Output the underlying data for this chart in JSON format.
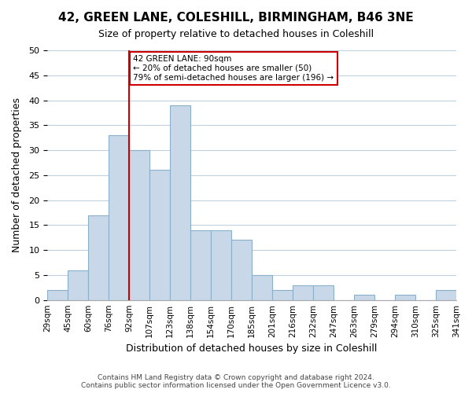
{
  "title": "42, GREEN LANE, COLESHILL, BIRMINGHAM, B46 3NE",
  "subtitle": "Size of property relative to detached houses in Coleshill",
  "xlabel": "Distribution of detached houses by size in Coleshill",
  "ylabel": "Number of detached properties",
  "footer_lines": [
    "Contains HM Land Registry data © Crown copyright and database right 2024.",
    "Contains public sector information licensed under the Open Government Licence v3.0."
  ],
  "bin_labels": [
    "29sqm",
    "45sqm",
    "60sqm",
    "76sqm",
    "92sqm",
    "107sqm",
    "123sqm",
    "138sqm",
    "154sqm",
    "170sqm",
    "185sqm",
    "201sqm",
    "216sqm",
    "232sqm",
    "247sqm",
    "263sqm",
    "279sqm",
    "294sqm",
    "310sqm",
    "325sqm",
    "341sqm"
  ],
  "bar_values": [
    2,
    6,
    17,
    33,
    30,
    26,
    39,
    14,
    14,
    12,
    5,
    2,
    3,
    3,
    0,
    1,
    0,
    1,
    0,
    2
  ],
  "bar_color": "#c8d8e8",
  "bar_edge_color": "#8aafc8",
  "marker_x_label": "92sqm",
  "marker_color": "#cc0000",
  "annotation_text": "42 GREEN LANE: 90sqm\n← 20% of detached houses are smaller (50)\n79% of semi-detached houses are larger (196) →",
  "annotation_box_color": "#ffffff",
  "annotation_box_edge_color": "#cc0000",
  "ylim": [
    0,
    50
  ],
  "yticks": [
    0,
    5,
    10,
    15,
    20,
    25,
    30,
    35,
    40,
    45,
    50
  ],
  "background_color": "#ffffff",
  "grid_color": "#c0d0e0"
}
